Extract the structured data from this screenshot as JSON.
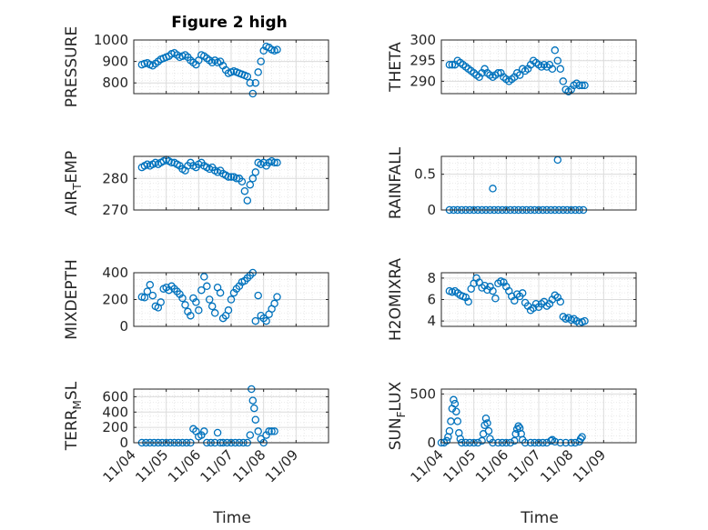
{
  "title": "Figure 2 high",
  "xlabel": "Time",
  "x_tick_labels": [
    "11/04",
    "11/05",
    "11/06",
    "11/07",
    "11/08",
    "11/09"
  ],
  "marker_color": "#0072bd",
  "grid": true,
  "chart_data": [
    {
      "type": "scatter",
      "ylabel": "PRESSURE",
      "ylim": [
        750,
        1000
      ],
      "yticks": [
        800,
        900,
        1000
      ],
      "x": [
        "11/04 06:00",
        "11/04 08:00",
        "11/04 10:00",
        "11/04 12:00",
        "11/04 14:00",
        "11/04 16:00",
        "11/04 18:00",
        "11/04 20:00",
        "11/04 22:00",
        "11/05 00:00",
        "11/05 02:00",
        "11/05 04:00",
        "11/05 06:00",
        "11/05 08:00",
        "11/05 10:00",
        "11/05 12:00",
        "11/05 14:00",
        "11/05 16:00",
        "11/05 18:00",
        "11/05 20:00",
        "11/05 22:00",
        "11/06 00:00",
        "11/06 02:00",
        "11/06 04:00",
        "11/06 06:00",
        "11/06 08:00",
        "11/06 10:00",
        "11/06 12:00",
        "11/06 14:00",
        "11/06 16:00",
        "11/06 18:00",
        "11/06 20:00",
        "11/06 22:00",
        "11/07 00:00",
        "11/07 02:00",
        "11/07 04:00",
        "11/07 06:00",
        "11/07 08:00",
        "11/07 10:00",
        "11/07 12:00",
        "11/07 14:00",
        "11/07 16:00",
        "11/07 18:00",
        "11/07 20:00",
        "11/07 22:00",
        "11/08 00:00",
        "11/08 02:00",
        "11/08 04:00",
        "11/08 06:00",
        "11/08 08:00",
        "11/08 10:00"
      ],
      "y": [
        885,
        890,
        893,
        885,
        880,
        890,
        900,
        910,
        915,
        920,
        925,
        935,
        940,
        930,
        920,
        925,
        930,
        920,
        905,
        895,
        885,
        905,
        930,
        925,
        915,
        905,
        895,
        905,
        895,
        900,
        880,
        860,
        845,
        850,
        855,
        850,
        845,
        840,
        835,
        830,
        800,
        750,
        800,
        850,
        900,
        950,
        970,
        965,
        955,
        950,
        955
      ]
    },
    {
      "type": "scatter",
      "ylabel": "THETA",
      "ylim": [
        287,
        300
      ],
      "yticks": [
        290,
        295,
        300
      ],
      "x": [
        "11/04 06:00",
        "11/04 08:00",
        "11/04 10:00",
        "11/04 12:00",
        "11/04 14:00",
        "11/04 16:00",
        "11/04 18:00",
        "11/04 20:00",
        "11/04 22:00",
        "11/05 00:00",
        "11/05 02:00",
        "11/05 04:00",
        "11/05 06:00",
        "11/05 08:00",
        "11/05 10:00",
        "11/05 12:00",
        "11/05 14:00",
        "11/05 16:00",
        "11/05 18:00",
        "11/05 20:00",
        "11/05 22:00",
        "11/06 00:00",
        "11/06 02:00",
        "11/06 04:00",
        "11/06 06:00",
        "11/06 08:00",
        "11/06 10:00",
        "11/06 12:00",
        "11/06 14:00",
        "11/06 16:00",
        "11/06 18:00",
        "11/06 20:00",
        "11/06 22:00",
        "11/07 00:00",
        "11/07 02:00",
        "11/07 04:00",
        "11/07 06:00",
        "11/07 08:00",
        "11/07 10:00",
        "11/07 12:00",
        "11/07 14:00",
        "11/07 16:00",
        "11/07 18:00",
        "11/07 20:00",
        "11/07 22:00",
        "11/08 00:00",
        "11/08 02:00",
        "11/08 04:00",
        "11/08 06:00",
        "11/08 08:00",
        "11/08 10:00"
      ],
      "y": [
        294,
        294,
        294,
        295,
        294.5,
        294,
        293.5,
        293,
        292.5,
        292,
        291.5,
        291,
        292,
        293,
        292,
        291.5,
        291,
        291.5,
        292,
        292,
        291,
        290.5,
        290,
        290.5,
        291,
        292,
        291.5,
        293,
        292.5,
        293,
        294,
        295,
        294.5,
        294,
        293.5,
        294,
        293.5,
        294,
        293,
        297.5,
        295,
        293,
        290,
        288,
        287.5,
        288,
        289,
        289.5,
        289,
        289,
        289
      ]
    },
    {
      "type": "scatter",
      "ylabel": "AIR_TEMP",
      "ylim": [
        270,
        287
      ],
      "yticks": [
        270,
        280
      ],
      "x": [
        "11/04 06:00",
        "11/04 08:00",
        "11/04 10:00",
        "11/04 12:00",
        "11/04 14:00",
        "11/04 16:00",
        "11/04 18:00",
        "11/04 20:00",
        "11/04 22:00",
        "11/05 00:00",
        "11/05 02:00",
        "11/05 04:00",
        "11/05 06:00",
        "11/05 08:00",
        "11/05 10:00",
        "11/05 12:00",
        "11/05 14:00",
        "11/05 16:00",
        "11/05 18:00",
        "11/05 20:00",
        "11/05 22:00",
        "11/06 00:00",
        "11/06 02:00",
        "11/06 04:00",
        "11/06 06:00",
        "11/06 08:00",
        "11/06 10:00",
        "11/06 12:00",
        "11/06 14:00",
        "11/06 16:00",
        "11/06 18:00",
        "11/06 20:00",
        "11/06 22:00",
        "11/07 00:00",
        "11/07 02:00",
        "11/07 04:00",
        "11/07 06:00",
        "11/07 08:00",
        "11/07 10:00",
        "11/07 12:00",
        "11/07 14:00",
        "11/07 16:00",
        "11/07 18:00",
        "11/07 20:00",
        "11/07 22:00",
        "11/08 00:00",
        "11/08 02:00",
        "11/08 04:00",
        "11/08 06:00",
        "11/08 08:00",
        "11/08 10:00"
      ],
      "y": [
        283.5,
        284,
        284.5,
        284,
        284.5,
        285,
        284.5,
        285,
        285.5,
        286,
        285.5,
        285,
        285,
        284.5,
        284,
        283,
        282.5,
        284,
        285,
        284,
        283.5,
        284.5,
        285,
        284,
        283.5,
        283,
        283.5,
        282.5,
        282,
        282.5,
        281.5,
        281,
        280.5,
        280.5,
        280.5,
        280,
        280,
        279,
        276,
        273,
        278,
        280,
        282,
        285,
        284.5,
        285,
        284,
        285,
        285.5,
        285,
        285
      ]
    },
    {
      "type": "scatter",
      "ylabel": "RAINFALL",
      "ylim": [
        0,
        0.75
      ],
      "yticks": [
        0,
        0.5
      ],
      "x": [
        "11/04 06:00",
        "11/04 09:00",
        "11/04 12:00",
        "11/04 15:00",
        "11/04 18:00",
        "11/04 21:00",
        "11/05 00:00",
        "11/05 03:00",
        "11/05 06:00",
        "11/05 09:00",
        "11/05 12:00",
        "11/05 15:00",
        "11/05 18:00",
        "11/05 21:00",
        "11/06 00:00",
        "11/06 03:00",
        "11/06 06:00",
        "11/06 09:00",
        "11/06 12:00",
        "11/06 15:00",
        "11/06 18:00",
        "11/06 21:00",
        "11/07 00:00",
        "11/07 03:00",
        "11/07 06:00",
        "11/07 09:00",
        "11/07 12:00",
        "11/07 15:00",
        "11/07 18:00",
        "11/07 21:00",
        "11/08 00:00",
        "11/08 03:00",
        "11/08 06:00",
        "11/08 09:00",
        "11/05 14:00",
        "11/07 14:00"
      ],
      "y": [
        0,
        0,
        0,
        0,
        0,
        0,
        0,
        0,
        0,
        0,
        0,
        0,
        0,
        0,
        0,
        0,
        0,
        0,
        0,
        0,
        0,
        0,
        0,
        0,
        0,
        0,
        0,
        0,
        0,
        0,
        0,
        0,
        0,
        0,
        0.3,
        0.7
      ]
    },
    {
      "type": "scatter",
      "ylabel": "MIXDEPTH",
      "ylim": [
        0,
        400
      ],
      "yticks": [
        0,
        200,
        400
      ],
      "x": [
        "11/04 06:00",
        "11/04 08:00",
        "11/04 10:00",
        "11/04 12:00",
        "11/04 14:00",
        "11/04 16:00",
        "11/04 18:00",
        "11/04 20:00",
        "11/04 22:00",
        "11/05 00:00",
        "11/05 02:00",
        "11/05 04:00",
        "11/05 06:00",
        "11/05 08:00",
        "11/05 10:00",
        "11/05 12:00",
        "11/05 14:00",
        "11/05 16:00",
        "11/05 18:00",
        "11/05 20:00",
        "11/05 22:00",
        "11/06 00:00",
        "11/06 02:00",
        "11/06 04:00",
        "11/06 06:00",
        "11/06 08:00",
        "11/06 10:00",
        "11/06 12:00",
        "11/06 14:00",
        "11/06 16:00",
        "11/06 18:00",
        "11/06 20:00",
        "11/06 22:00",
        "11/07 00:00",
        "11/07 02:00",
        "11/07 04:00",
        "11/07 06:00",
        "11/07 08:00",
        "11/07 10:00",
        "11/07 12:00",
        "11/07 14:00",
        "11/07 16:00",
        "11/07 18:00",
        "11/07 20:00",
        "11/07 22:00",
        "11/08 00:00",
        "11/08 02:00",
        "11/08 04:00",
        "11/08 06:00",
        "11/08 08:00",
        "11/08 10:00"
      ],
      "y": [
        220,
        215,
        260,
        310,
        230,
        150,
        140,
        180,
        280,
        290,
        270,
        300,
        280,
        260,
        240,
        210,
        160,
        110,
        80,
        210,
        180,
        120,
        270,
        370,
        300,
        200,
        150,
        100,
        290,
        250,
        60,
        80,
        120,
        200,
        250,
        280,
        300,
        330,
        340,
        360,
        380,
        400,
        40,
        230,
        80,
        60,
        40,
        90,
        130,
        170,
        220
      ]
    },
    {
      "type": "scatter",
      "ylabel": "H2OMIXRA",
      "ylim": [
        3.5,
        8.5
      ],
      "yticks": [
        4,
        6,
        8
      ],
      "x": [
        "11/04 06:00",
        "11/04 08:00",
        "11/04 10:00",
        "11/04 12:00",
        "11/04 14:00",
        "11/04 16:00",
        "11/04 18:00",
        "11/04 20:00",
        "11/04 22:00",
        "11/05 00:00",
        "11/05 02:00",
        "11/05 04:00",
        "11/05 06:00",
        "11/05 08:00",
        "11/05 10:00",
        "11/05 12:00",
        "11/05 14:00",
        "11/05 16:00",
        "11/05 18:00",
        "11/05 20:00",
        "11/05 22:00",
        "11/06 00:00",
        "11/06 02:00",
        "11/06 04:00",
        "11/06 06:00",
        "11/06 08:00",
        "11/06 10:00",
        "11/06 12:00",
        "11/06 14:00",
        "11/06 16:00",
        "11/06 18:00",
        "11/06 20:00",
        "11/06 22:00",
        "11/07 00:00",
        "11/07 02:00",
        "11/07 04:00",
        "11/07 06:00",
        "11/07 08:00",
        "11/07 10:00",
        "11/07 12:00",
        "11/07 14:00",
        "11/07 16:00",
        "11/07 18:00",
        "11/07 20:00",
        "11/07 22:00",
        "11/08 00:00",
        "11/08 02:00",
        "11/08 04:00",
        "11/08 06:00",
        "11/08 08:00",
        "11/08 10:00"
      ],
      "y": [
        6.8,
        6.7,
        6.8,
        6.6,
        6.4,
        6.3,
        6.2,
        5.8,
        7.0,
        7.5,
        8.0,
        7.6,
        7.1,
        7.3,
        6.9,
        7.2,
        6.8,
        6.1,
        7.5,
        7.7,
        7.6,
        7.2,
        6.8,
        6.3,
        5.9,
        6.5,
        6.3,
        6.6,
        5.7,
        5.4,
        5.0,
        5.2,
        5.6,
        5.3,
        5.6,
        5.8,
        5.4,
        5.6,
        6.0,
        6.4,
        6.2,
        5.8,
        4.4,
        4.2,
        4.3,
        4.1,
        4.2,
        4.0,
        3.8,
        3.9,
        4.0
      ]
    },
    {
      "type": "scatter",
      "ylabel": "TERR_MSL",
      "ylim": [
        0,
        700
      ],
      "yticks": [
        0,
        200,
        400,
        600
      ],
      "x": [
        "11/04 06:00",
        "11/04 09:00",
        "11/04 12:00",
        "11/04 15:00",
        "11/04 18:00",
        "11/04 21:00",
        "11/05 00:00",
        "11/05 03:00",
        "11/05 06:00",
        "11/05 09:00",
        "11/05 12:00",
        "11/05 15:00",
        "11/05 18:00",
        "11/05 20:00",
        "11/05 22:00",
        "11/06 00:00",
        "11/06 02:00",
        "11/06 04:00",
        "11/06 06:00",
        "11/06 09:00",
        "11/06 12:00",
        "11/06 14:00",
        "11/06 16:00",
        "11/06 18:00",
        "11/06 21:00",
        "11/07 00:00",
        "11/07 03:00",
        "11/07 06:00",
        "11/07 09:00",
        "11/07 12:00",
        "11/07 14:00",
        "11/07 15:00",
        "11/07 16:00",
        "11/07 17:00",
        "11/07 18:00",
        "11/07 20:00",
        "11/07 22:00",
        "11/08 00:00",
        "11/08 02:00",
        "11/08 04:00",
        "11/08 06:00",
        "11/08 08:00"
      ],
      "y": [
        0,
        0,
        0,
        0,
        0,
        0,
        0,
        0,
        0,
        0,
        0,
        0,
        0,
        180,
        150,
        80,
        100,
        150,
        0,
        0,
        0,
        130,
        0,
        0,
        0,
        0,
        0,
        0,
        0,
        0,
        100,
        700,
        550,
        450,
        300,
        150,
        50,
        0,
        100,
        150,
        150,
        150
      ]
    },
    {
      "type": "scatter",
      "ylabel": "SUN_FLUX",
      "ylim": [
        0,
        550
      ],
      "yticks": [
        0,
        500
      ],
      "x": [
        "11/04 00:00",
        "11/04 02:00",
        "11/04 04:00",
        "11/04 05:00",
        "11/04 06:00",
        "11/04 07:00",
        "11/04 08:00",
        "11/04 09:00",
        "11/04 10:00",
        "11/04 11:00",
        "11/04 12:00",
        "11/04 13:00",
        "11/04 14:00",
        "11/04 15:00",
        "11/04 18:00",
        "11/04 21:00",
        "11/05 00:00",
        "11/05 03:00",
        "11/05 06:00",
        "11/05 07:00",
        "11/05 08:00",
        "11/05 09:00",
        "11/05 10:00",
        "11/05 11:00",
        "11/05 12:00",
        "11/05 14:00",
        "11/05 18:00",
        "11/05 21:00",
        "11/06 00:00",
        "11/06 03:00",
        "11/06 06:00",
        "11/06 07:00",
        "11/06 08:00",
        "11/06 09:00",
        "11/06 10:00",
        "11/06 11:00",
        "11/06 12:00",
        "11/06 14:00",
        "11/06 18:00",
        "11/06 21:00",
        "11/07 00:00",
        "11/07 03:00",
        "11/07 06:00",
        "11/07 09:00",
        "11/07 10:00",
        "11/07 12:00",
        "11/07 16:00",
        "11/07 20:00",
        "11/08 00:00",
        "11/08 03:00",
        "11/08 06:00",
        "11/08 07:00",
        "11/08 08:00"
      ],
      "y": [
        0,
        0,
        20,
        60,
        120,
        220,
        350,
        440,
        400,
        320,
        220,
        100,
        40,
        0,
        0,
        0,
        0,
        0,
        20,
        90,
        180,
        250,
        200,
        120,
        40,
        0,
        0,
        0,
        0,
        0,
        20,
        90,
        140,
        170,
        150,
        90,
        30,
        0,
        0,
        0,
        0,
        0,
        0,
        20,
        30,
        10,
        0,
        0,
        0,
        0,
        10,
        40,
        60
      ]
    }
  ]
}
